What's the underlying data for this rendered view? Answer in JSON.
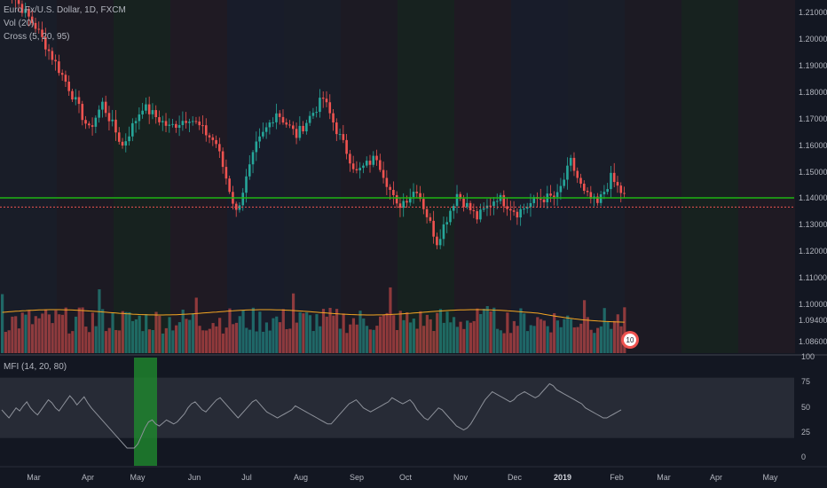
{
  "header": {
    "symbol_title": "Euro Fx/U.S. Dollar, 1D, FXCM",
    "study_vol": "Vol (20)",
    "study_cross": "Cross (5, 20, 95)"
  },
  "mfi_panel": {
    "title": "MFI (14, 20, 80)"
  },
  "colors": {
    "background": "#131722",
    "up": "#26a69a",
    "down": "#ef5350",
    "support_line": "#1fb512",
    "price_line": "#ef5350",
    "vol_ma": "#f5a623",
    "mfi_line": "#8e929b",
    "mfi_band": "#2a2e39"
  },
  "badge": {
    "text": "10"
  },
  "chart_data": [
    {
      "type": "candlestick",
      "title": "Euro Fx/U.S. Dollar, 1D, FXCM",
      "ylim": [
        1.082,
        1.215
      ],
      "y_ticks": [
        "1.21000",
        "1.20000",
        "1.19000",
        "1.18000",
        "1.17000",
        "1.16000",
        "1.15000",
        "1.14000",
        "1.13000",
        "1.12000",
        "1.11000",
        "1.10000",
        "1.09400",
        "1.08600"
      ],
      "x_ticks": [
        "Mar",
        "Apr",
        "May",
        "Jun",
        "Jul",
        "Aug",
        "Sep",
        "Oct",
        "Nov",
        "Dec",
        "2019",
        "Feb",
        "Mar",
        "Apr",
        "May"
      ],
      "support_level": 1.1405,
      "last_price": 1.137,
      "close_path_anchors": [
        [
          0,
          1.222
        ],
        [
          10,
          1.205
        ],
        [
          20,
          1.182
        ],
        [
          26,
          1.166
        ],
        [
          30,
          1.176
        ],
        [
          36,
          1.16
        ],
        [
          42,
          1.175
        ],
        [
          50,
          1.167
        ],
        [
          56,
          1.171
        ],
        [
          64,
          1.161
        ],
        [
          70,
          1.135
        ],
        [
          76,
          1.16
        ],
        [
          82,
          1.173
        ],
        [
          88,
          1.164
        ],
        [
          92,
          1.171
        ],
        [
          96,
          1.178
        ],
        [
          100,
          1.166
        ],
        [
          106,
          1.15
        ],
        [
          112,
          1.156
        ],
        [
          118,
          1.137
        ],
        [
          124,
          1.144
        ],
        [
          130,
          1.124
        ],
        [
          136,
          1.142
        ],
        [
          142,
          1.133
        ],
        [
          148,
          1.141
        ],
        [
          154,
          1.135
        ],
        [
          160,
          1.14
        ],
        [
          166,
          1.141
        ],
        [
          170,
          1.154
        ],
        [
          174,
          1.142
        ],
        [
          178,
          1.138
        ],
        [
          182,
          1.148
        ],
        [
          186,
          1.141
        ]
      ]
    },
    {
      "type": "bar",
      "title": "Vol (20)"
    },
    {
      "type": "line",
      "title": "MFI (14, 20, 80)",
      "ylim": [
        -5,
        100
      ],
      "y_ticks": [
        100,
        75,
        50,
        25,
        0
      ],
      "bands": [
        20,
        80
      ],
      "values": [
        48,
        44,
        40,
        45,
        50,
        47,
        52,
        56,
        50,
        46,
        43,
        48,
        53,
        58,
        55,
        50,
        47,
        52,
        57,
        62,
        58,
        53,
        57,
        61,
        55,
        50,
        46,
        42,
        38,
        34,
        30,
        26,
        22,
        18,
        14,
        10,
        10,
        10,
        14,
        22,
        30,
        36,
        38,
        34,
        32,
        35,
        38,
        36,
        34,
        36,
        40,
        44,
        50,
        54,
        56,
        52,
        48,
        46,
        50,
        54,
        58,
        60,
        56,
        52,
        48,
        44,
        40,
        44,
        48,
        52,
        56,
        58,
        54,
        50,
        46,
        44,
        42,
        40,
        42,
        44,
        46,
        48,
        52,
        50,
        48,
        46,
        44,
        42,
        40,
        38,
        36,
        34,
        34,
        38,
        42,
        46,
        50,
        54,
        56,
        58,
        54,
        50,
        48,
        46,
        48,
        50,
        52,
        54,
        56,
        60,
        58,
        56,
        54,
        56,
        58,
        54,
        48,
        44,
        40,
        38,
        42,
        46,
        50,
        48,
        44,
        40,
        36,
        32,
        30,
        28,
        30,
        34,
        40,
        46,
        52,
        58,
        62,
        66,
        64,
        62,
        60,
        58,
        56,
        58,
        62,
        64,
        66,
        64,
        62,
        60,
        62,
        66,
        70,
        74,
        72,
        68,
        66,
        64,
        62,
        60,
        58,
        56,
        54,
        50,
        48,
        46,
        44,
        42,
        40,
        40,
        42,
        44,
        46,
        48
      ]
    }
  ]
}
